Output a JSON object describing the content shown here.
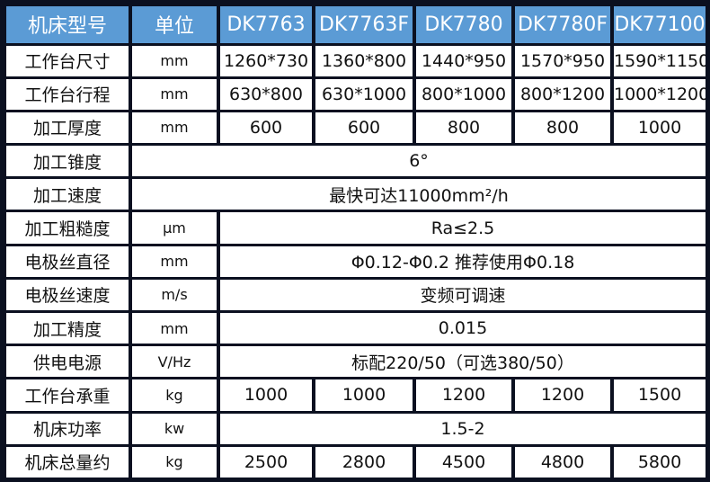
{
  "header": [
    "机床型号",
    "单位",
    "DK7763",
    "DK7763F",
    "DK7780",
    "DK7780F",
    "DK77100"
  ],
  "rows": [
    {
      "label": "工作台尺寸",
      "unit": "mm",
      "values": [
        "1260*730",
        "1360*800",
        "1440*950",
        "1570*950",
        "1590*1150"
      ]
    },
    {
      "label": "工作台行程",
      "unit": "mm",
      "values": [
        "630*800",
        "630*1000",
        "800*1000",
        "800*1200",
        "1000*1200"
      ]
    },
    {
      "label": "加工厚度",
      "unit": "mm",
      "values": [
        "600",
        "600",
        "800",
        "800",
        "1000"
      ]
    },
    {
      "label": "加工锥度",
      "unit": "",
      "merged": "6°"
    },
    {
      "label": "加工速度",
      "unit": "",
      "merged": "最快可达11000mm²/h"
    },
    {
      "label": "加工粗糙度",
      "unit": "μm",
      "merged": "Ra≤2.5"
    },
    {
      "label": "电极丝直径",
      "unit": "mm",
      "merged": "Φ0.12-Φ0.2 推荐使用Φ0.18"
    },
    {
      "label": "电极丝速度",
      "unit": "m/s",
      "merged": "变频可调速"
    },
    {
      "label": "加工精度",
      "unit": "mm",
      "merged": "0.015"
    },
    {
      "label": "供电电源",
      "unit": "V/Hz",
      "merged": "标配220/50（可选380/50）"
    },
    {
      "label": "工作台承重",
      "unit": "kg",
      "values": [
        "1000",
        "1000",
        "1200",
        "1200",
        "1500"
      ]
    },
    {
      "label": "机床功率",
      "unit": "kw",
      "merged": "1.5-2"
    },
    {
      "label": "机床总量约",
      "unit": "kg",
      "values": [
        "2500",
        "2800",
        "4500",
        "4800",
        "5800"
      ]
    }
  ],
  "colors": {
    "header_bg": "#5b9bd5",
    "border": "#0b1020"
  }
}
